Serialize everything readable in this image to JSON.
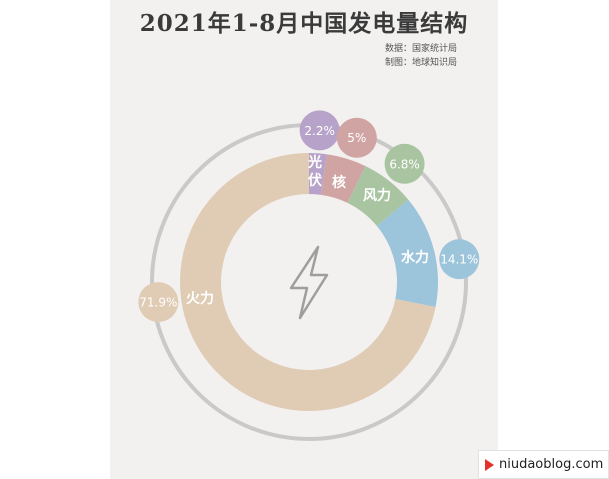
{
  "title": "2021年1-8月中国发电量结构",
  "source": {
    "data": "数据：国家统计局",
    "made": "制图：地球知识局"
  },
  "watermark": "地球知识局",
  "footer": {
    "text": "niudaoblog.com"
  },
  "center_icon": "lightning-icon",
  "chart_data": {
    "type": "pie",
    "title": "2021年1-8月中国发电量结构",
    "slices": [
      {
        "name": "光伏",
        "value": 2.2,
        "label": "2.2%",
        "color": "#b7a3c9"
      },
      {
        "name": "核",
        "value": 5,
        "label": "5%",
        "color": "#d1a4a4"
      },
      {
        "name": "风力",
        "value": 6.8,
        "label": "6.8%",
        "color": "#a9c4a1"
      },
      {
        "name": "水力",
        "value": 14.1,
        "label": "14.1%",
        "color": "#9cc4da"
      },
      {
        "name": "火力",
        "value": 71.9,
        "label": "71.9%",
        "color": "#e0cbb4"
      }
    ]
  }
}
